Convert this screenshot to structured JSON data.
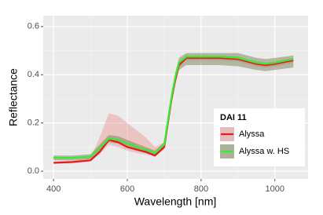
{
  "chart_data": {
    "type": "ribbon-line",
    "x_label": "Wavelength [nm]",
    "y_label": "Reflectance",
    "xlim": [
      372,
      1090
    ],
    "ylim": [
      -0.032,
      0.645
    ],
    "xticks": [
      400,
      600,
      800,
      1000
    ],
    "xminor": [
      500,
      700,
      900
    ],
    "yticks": [
      {
        "value": 0,
        "label": "0.0"
      },
      0.2,
      0.4,
      0.6
    ],
    "yminor": [
      0.1,
      0.3,
      0.5
    ],
    "grid": true,
    "legend_title": "DAI 11",
    "legend_position": "bottom-right",
    "x": [
      400,
      450,
      500,
      525,
      550,
      575,
      600,
      625,
      650,
      675,
      700,
      710,
      720,
      730,
      740,
      760,
      800,
      850,
      900,
      950,
      975,
      1000,
      1050
    ],
    "series": [
      {
        "name": "Alyssa",
        "color": "#e8191c",
        "ribbon_color": "rgba(232,120,120,0.35)",
        "values": [
          0.035,
          0.038,
          0.045,
          0.08,
          0.13,
          0.12,
          0.1,
          0.09,
          0.08,
          0.065,
          0.1,
          0.2,
          0.3,
          0.38,
          0.44,
          0.47,
          0.47,
          0.47,
          0.465,
          0.445,
          0.44,
          0.445,
          0.46
        ],
        "lower": [
          0.03,
          0.032,
          0.04,
          0.07,
          0.11,
          0.1,
          0.085,
          0.075,
          0.07,
          0.06,
          0.09,
          0.18,
          0.28,
          0.36,
          0.43,
          0.46,
          0.46,
          0.46,
          0.455,
          0.435,
          0.43,
          0.435,
          0.45
        ],
        "upper": [
          0.04,
          0.045,
          0.055,
          0.14,
          0.24,
          0.23,
          0.2,
          0.17,
          0.14,
          0.1,
          0.12,
          0.22,
          0.32,
          0.4,
          0.45,
          0.48,
          0.48,
          0.48,
          0.475,
          0.455,
          0.45,
          0.455,
          0.47
        ]
      },
      {
        "name": "Alyssa w. HS",
        "color": "#33ee33",
        "ribbon_color": "rgba(110,120,70,0.45)",
        "values": [
          0.055,
          0.055,
          0.06,
          0.095,
          0.135,
          0.13,
          0.115,
          0.1,
          0.09,
          0.075,
          0.11,
          0.21,
          0.31,
          0.39,
          0.45,
          0.475,
          0.475,
          0.475,
          0.47,
          0.45,
          0.445,
          0.45,
          0.465
        ],
        "lower": [
          0.045,
          0.045,
          0.05,
          0.08,
          0.12,
          0.115,
          0.1,
          0.085,
          0.075,
          0.065,
          0.095,
          0.19,
          0.29,
          0.36,
          0.42,
          0.44,
          0.44,
          0.44,
          0.435,
          0.42,
          0.415,
          0.42,
          0.43
        ],
        "upper": [
          0.065,
          0.065,
          0.07,
          0.11,
          0.15,
          0.145,
          0.13,
          0.115,
          0.1,
          0.085,
          0.12,
          0.23,
          0.33,
          0.41,
          0.47,
          0.49,
          0.49,
          0.49,
          0.49,
          0.47,
          0.465,
          0.47,
          0.48
        ]
      }
    ]
  }
}
